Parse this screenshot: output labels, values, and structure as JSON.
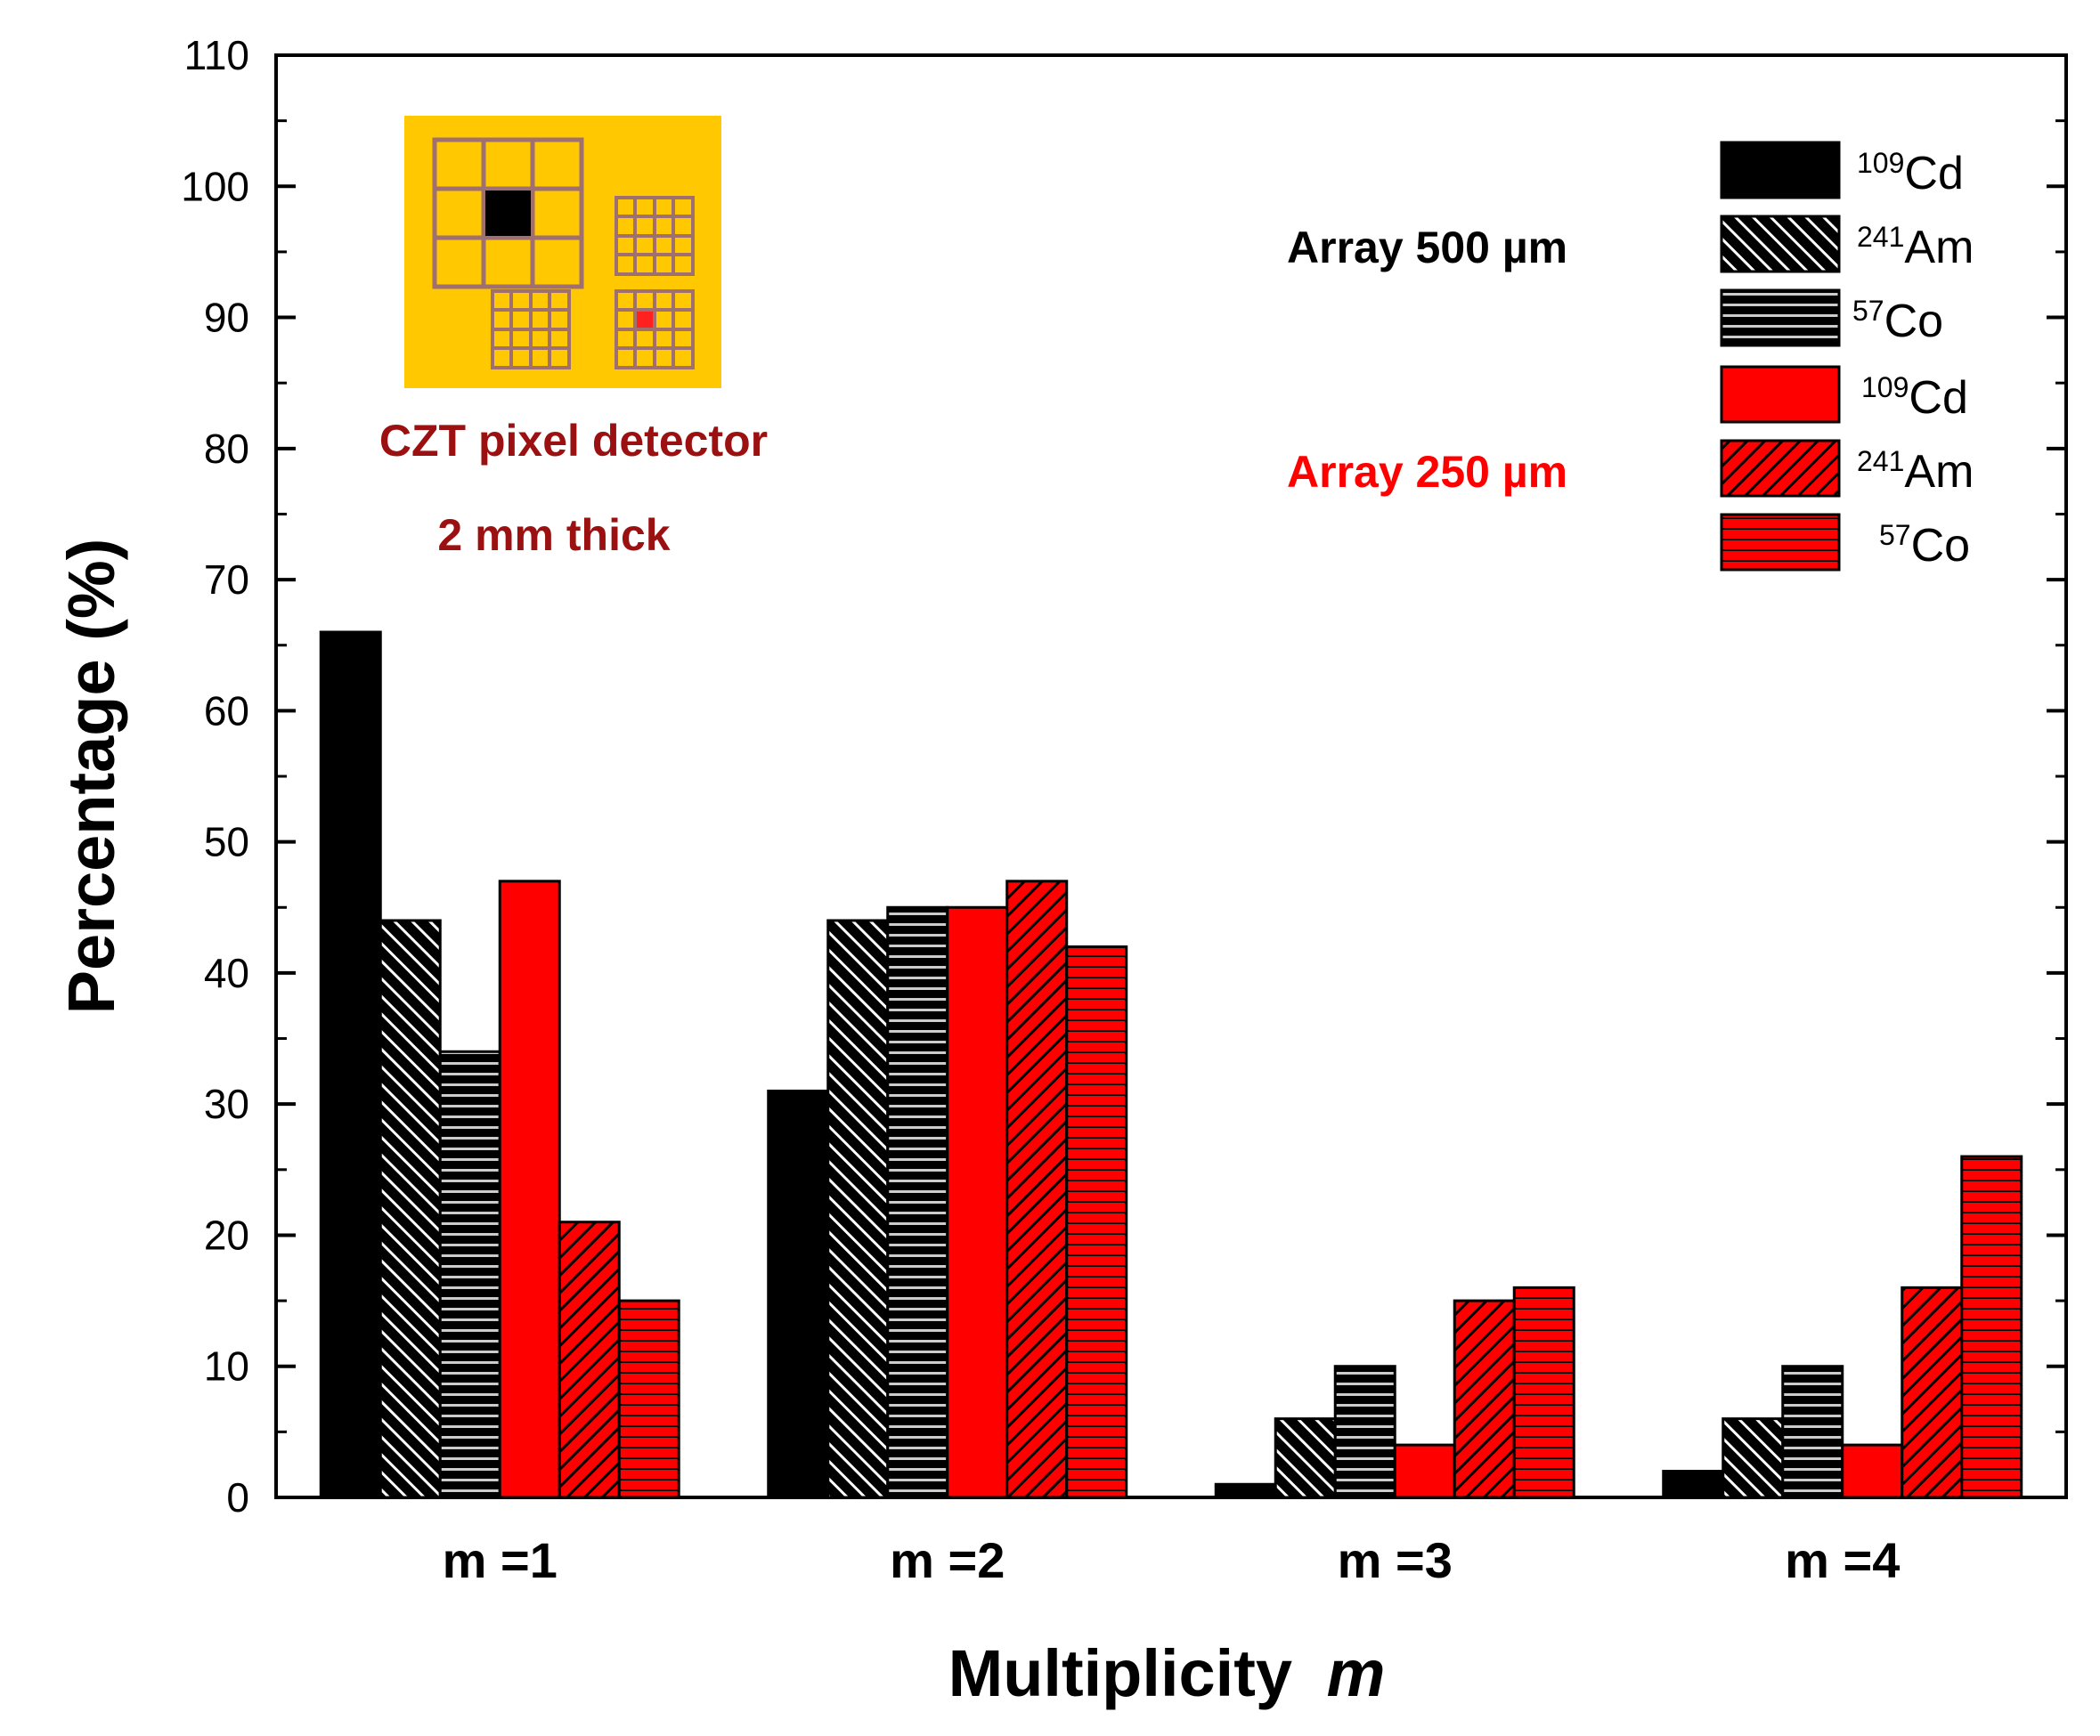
{
  "colors": {
    "black_series": "#000000",
    "red_series": "#ff0000",
    "inset_background": "#ffc800",
    "inset_grid": "#a07070",
    "inset_text": "#9b1010",
    "red_label": "#ff0000"
  },
  "inset": {
    "line1": "CZT pixel detector",
    "line2": "2 mm thick"
  },
  "legend": {
    "group_black_label": "Array 500 µm",
    "group_red_label": "Array 250 µm",
    "entries": [
      {
        "sup": "109",
        "name": "Cd",
        "group": "black",
        "pattern": "solid"
      },
      {
        "sup": "241",
        "name": "Am",
        "group": "black",
        "pattern": "diagonal"
      },
      {
        "sup": "57",
        "name": "Co",
        "group": "black",
        "pattern": "horizontal"
      },
      {
        "sup": "109",
        "name": "Cd",
        "group": "red",
        "pattern": "solid"
      },
      {
        "sup": "241",
        "name": "Am",
        "group": "red",
        "pattern": "diagonal"
      },
      {
        "sup": "57",
        "name": "Co",
        "group": "red",
        "pattern": "horizontal"
      }
    ]
  },
  "chart_data": {
    "type": "bar",
    "xlabel": "Multiplicity",
    "xlabel_italic": "m",
    "ylabel": "Percentage (%)",
    "ylim": [
      0,
      110
    ],
    "yticks": [
      0,
      10,
      20,
      30,
      40,
      50,
      60,
      70,
      80,
      90,
      100,
      110
    ],
    "categories": [
      "m =1",
      "m =2",
      "m =3",
      "m =4"
    ],
    "grid": false,
    "legend_position": "top-right",
    "series": [
      {
        "name": "109Cd (Array 500 µm)",
        "color": "#000000",
        "pattern": "solid",
        "values": [
          66,
          31,
          1,
          2
        ]
      },
      {
        "name": "241Am (Array 500 µm)",
        "color": "#000000",
        "pattern": "diagonal",
        "values": [
          44,
          44,
          6,
          6
        ]
      },
      {
        "name": "57Co (Array 500 µm)",
        "color": "#000000",
        "pattern": "horizontal",
        "values": [
          34,
          45,
          10,
          10
        ]
      },
      {
        "name": "109Cd (Array 250 µm)",
        "color": "#ff0000",
        "pattern": "solid",
        "values": [
          47,
          45,
          4,
          4
        ]
      },
      {
        "name": "241Am (Array 250 µm)",
        "color": "#ff0000",
        "pattern": "diagonal",
        "values": [
          21,
          47,
          15,
          16
        ]
      },
      {
        "name": "57Co (Array 250 µm)",
        "color": "#ff0000",
        "pattern": "horizontal",
        "values": [
          15,
          42,
          16,
          26
        ]
      }
    ]
  }
}
